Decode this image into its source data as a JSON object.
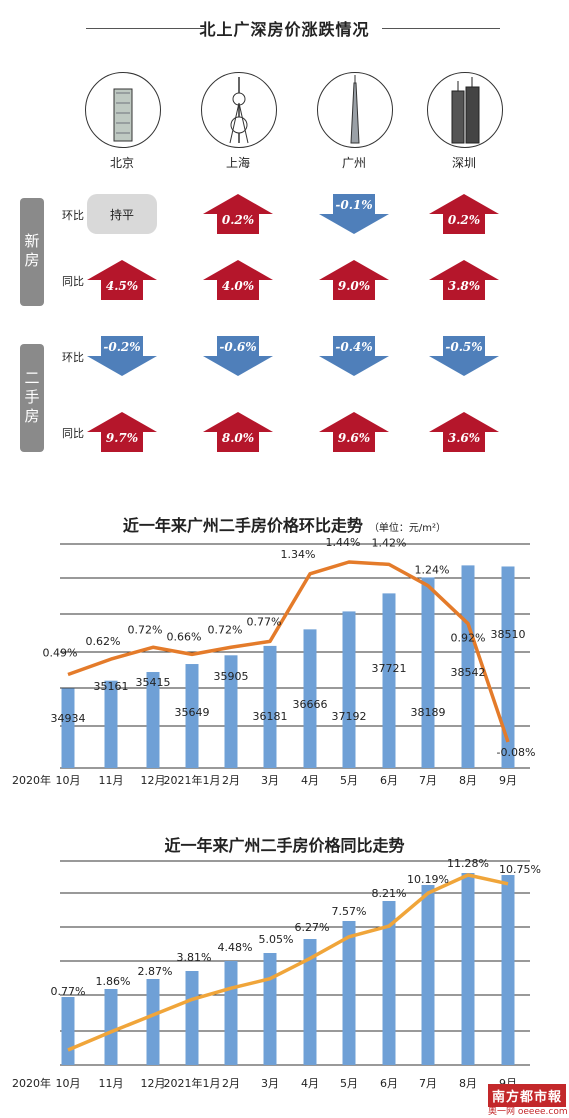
{
  "header": {
    "title": "北上广深房价涨跌情况"
  },
  "cities": [
    "北京",
    "上海",
    "广州",
    "深圳"
  ],
  "groups": [
    {
      "name": "新房",
      "rows": [
        {
          "label": "环比",
          "items": [
            {
              "text": "持平",
              "dir": "flat"
            },
            {
              "text": "0.2%",
              "dir": "up"
            },
            {
              "text": "-0.1%",
              "dir": "down"
            },
            {
              "text": "0.2%",
              "dir": "up"
            }
          ]
        },
        {
          "label": "同比",
          "items": [
            {
              "text": "4.5%",
              "dir": "up"
            },
            {
              "text": "4.0%",
              "dir": "up"
            },
            {
              "text": "9.0%",
              "dir": "up"
            },
            {
              "text": "3.8%",
              "dir": "up"
            }
          ]
        }
      ]
    },
    {
      "name": "二手房",
      "rows": [
        {
          "label": "环比",
          "items": [
            {
              "text": "-0.2%",
              "dir": "down"
            },
            {
              "text": "-0.6%",
              "dir": "down"
            },
            {
              "text": "-0.4%",
              "dir": "down"
            },
            {
              "text": "-0.5%",
              "dir": "down"
            }
          ]
        },
        {
          "label": "同比",
          "items": [
            {
              "text": "9.7%",
              "dir": "up"
            },
            {
              "text": "8.0%",
              "dir": "up"
            },
            {
              "text": "9.6%",
              "dir": "up"
            },
            {
              "text": "3.6%",
              "dir": "up"
            }
          ]
        }
      ]
    }
  ],
  "colors": {
    "up": "#b5162b",
    "down": "#4f7fba",
    "bar": "#6fa0d6",
    "line": "#e47b2a",
    "flat": "#d9d9d9"
  },
  "chart_data": [
    {
      "type": "bar+line",
      "title": "近一年来广州二手房价格环比走势",
      "unit": "（单位：元/m²）",
      "year_label": "2020年",
      "categories": [
        "10月",
        "11月",
        "12月",
        "2021年1月",
        "2月",
        "3月",
        "4月",
        "5月",
        "6月",
        "7月",
        "8月",
        "9月"
      ],
      "series": [
        {
          "name": "",
          "type": "bar",
          "values": [
            34934,
            35161,
            35415,
            35649,
            35905,
            36181,
            36666,
            37192,
            37721,
            38189,
            38542,
            38510
          ],
          "labels": [
            "34934",
            "35161",
            "35415",
            "35649",
            "35905",
            "36181",
            "36666",
            "37192",
            "37721",
            "38189",
            "38542",
            "38510"
          ]
        },
        {
          "name": "",
          "type": "line",
          "values": [
            0.49,
            0.62,
            0.72,
            0.66,
            0.72,
            0.77,
            1.34,
            1.44,
            1.42,
            1.24,
            0.92,
            -0.08
          ],
          "labels": [
            "0.49%",
            "0.62%",
            "0.72%",
            "0.66%",
            "0.72%",
            "0.77%",
            "1.34%",
            "1.44%",
            "1.42%",
            "1.24%",
            "0.92%",
            "-0.08%"
          ]
        }
      ],
      "grid": true
    },
    {
      "type": "bar+line",
      "title": "近一年来广州二手房价格同比走势",
      "year_label": "2020年",
      "categories": [
        "10月",
        "11月",
        "12月",
        "2021年1月",
        "2月",
        "3月",
        "4月",
        "5月",
        "6月",
        "7月",
        "8月",
        "9月"
      ],
      "series": [
        {
          "name": "",
          "type": "bar+line",
          "values": [
            0.77,
            1.86,
            2.87,
            3.81,
            4.48,
            5.05,
            6.27,
            7.57,
            8.21,
            10.19,
            11.28,
            10.75
          ],
          "labels": [
            "0.77%",
            "1.86%",
            "2.87%",
            "3.81%",
            "4.48%",
            "5.05%",
            "6.27%",
            "7.57%",
            "8.21%",
            "10.19%",
            "11.28%",
            "10.75%"
          ]
        }
      ],
      "grid": true
    }
  ],
  "footer": {
    "logo": "南方都市報",
    "site": "奥一网 oeeee.com"
  }
}
